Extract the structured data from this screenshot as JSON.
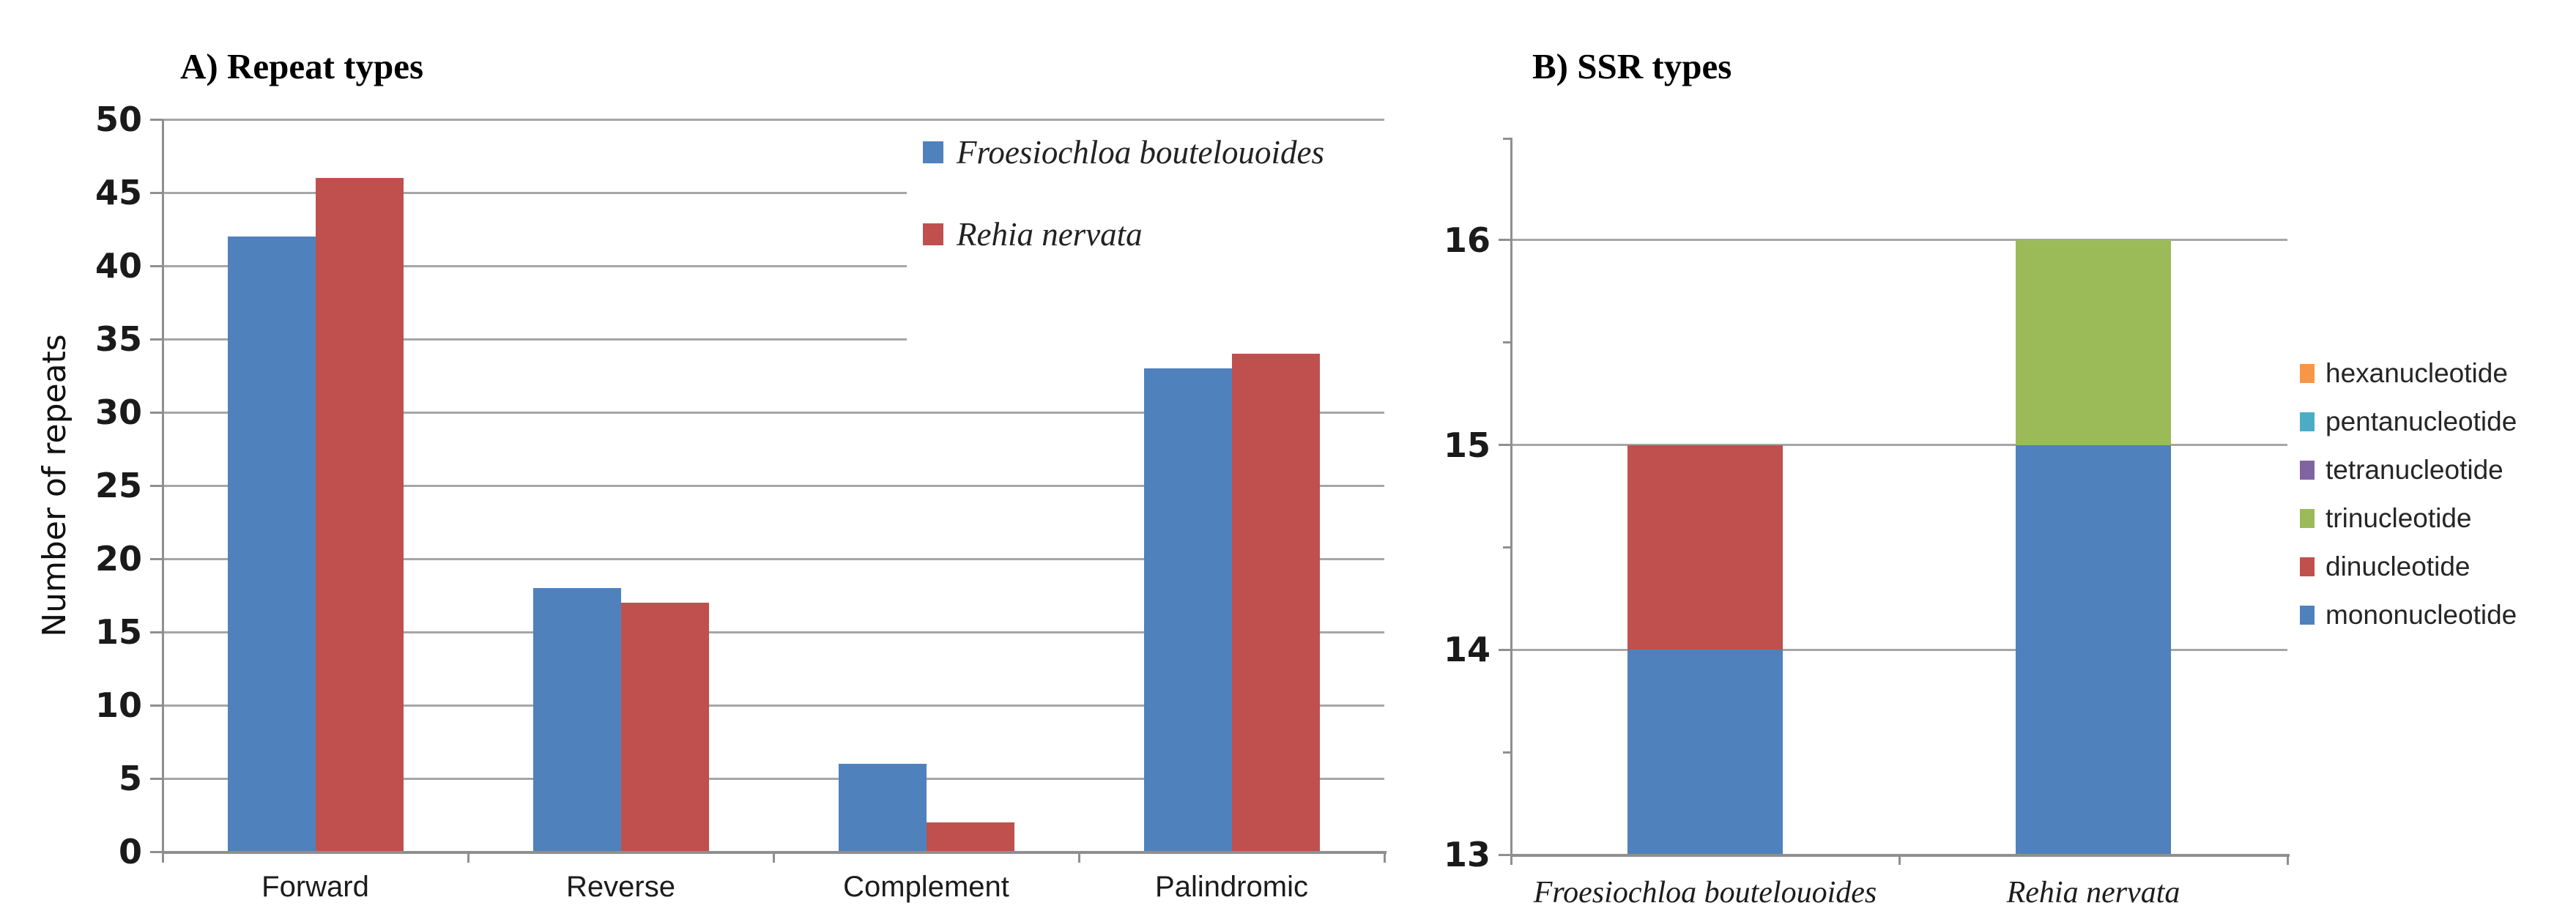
{
  "chart_data": [
    {
      "id": "repeat-types",
      "type": "bar",
      "title": "A) Repeat types",
      "ylabel": "Number of repeats",
      "categories": [
        "Forward",
        "Reverse",
        "Complement",
        "Palindromic"
      ],
      "series": [
        {
          "name": "Froesiochloa boutelouoides",
          "color": "#4F81BD",
          "values": [
            42,
            18,
            6,
            33
          ]
        },
        {
          "name": "Rehia nervata",
          "color": "#C0504D",
          "values": [
            46,
            17,
            2,
            34
          ]
        }
      ],
      "ylim": [
        0,
        50
      ],
      "ytick_step": 5,
      "grid": true,
      "legend_position": "inside-top-right",
      "axis_color": "#8f8f8f",
      "grid_color": "#a6a6a6"
    },
    {
      "id": "ssr-types",
      "type": "stacked-bar",
      "title": "B) SSR types",
      "categories": [
        "Froesiochloa boutelouoides",
        "Rehia nervata"
      ],
      "series": [
        {
          "name": "mononucleotide",
          "color": "#4F81BD",
          "values": [
            14,
            15
          ]
        },
        {
          "name": "dinucleotide",
          "color": "#C0504D",
          "values": [
            1,
            0
          ]
        },
        {
          "name": "trinucleotide",
          "color": "#9BBB59",
          "values": [
            0,
            1
          ]
        },
        {
          "name": "tetranucleotide",
          "color": "#8064A2",
          "values": [
            0,
            0
          ]
        },
        {
          "name": "pentanucleotide",
          "color": "#4BACC6",
          "values": [
            0,
            0
          ]
        },
        {
          "name": "hexanucleotide",
          "color": "#F79646",
          "values": [
            0,
            0
          ]
        }
      ],
      "legend_order_top_to_bottom": [
        "hexanucleotide",
        "pentanucleotide",
        "tetranucleotide",
        "trinucleotide",
        "dinucleotide",
        "mononucleotide"
      ],
      "ylim": [
        13,
        16.5
      ],
      "yticks": [
        13,
        14,
        15,
        16
      ],
      "minor_yticks": [
        13.5,
        14.5,
        15.5
      ],
      "baseline": 13,
      "grid": true,
      "legend_position": "right",
      "axis_color": "#8f8f8f",
      "grid_color": "#a6a6a6"
    }
  ]
}
